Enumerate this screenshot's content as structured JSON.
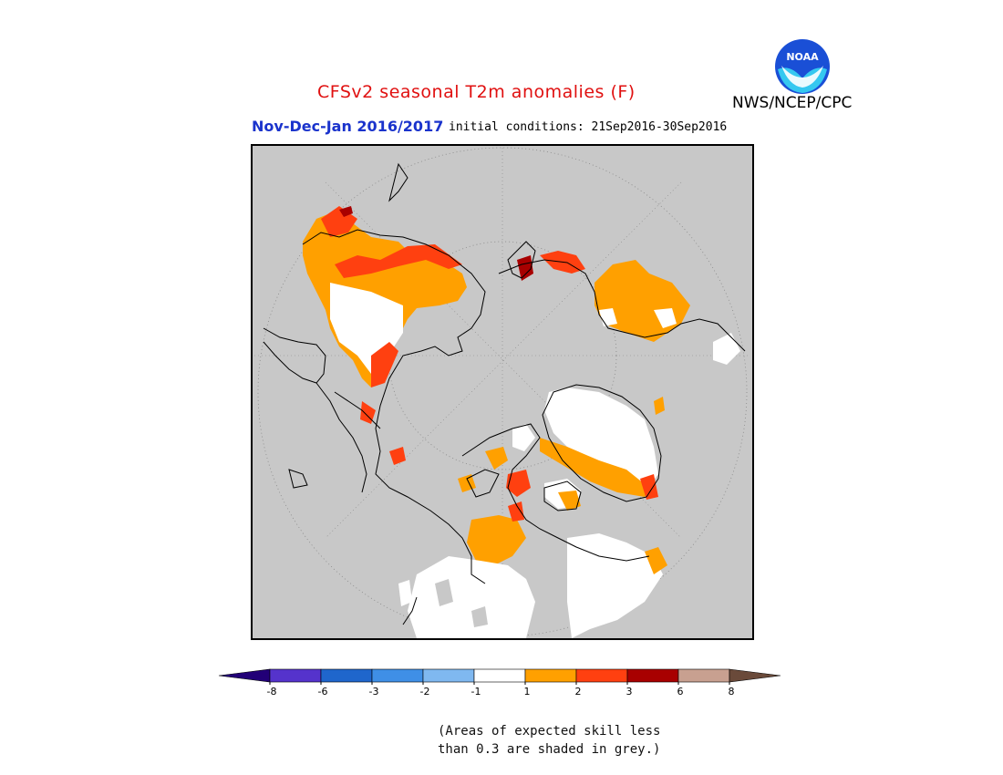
{
  "title": "CFSv2 seasonal T2m anomalies (F)",
  "season": "Nov-Dec-Jan 2016/2017",
  "initial_conditions": "initial conditions: 21Sep2016-30Sep2016",
  "agency": "NWS/NCEP/CPC",
  "logo_text": "NOAA",
  "legend": {
    "ticks": [
      "-8",
      "-6",
      "-3",
      "-2",
      "-1",
      "1",
      "2",
      "3",
      "6",
      "8"
    ],
    "colors": [
      "#220077",
      "#5533cc",
      "#1f66cc",
      "#3f8fe6",
      "#7fb8f0",
      "#ffffff",
      "#ffa000",
      "#ff4010",
      "#a80000",
      "#c8a090",
      "#6a4a3a"
    ]
  },
  "note": {
    "line1": "(Areas of expected skill less",
    "line2": "than 0.3 are shaded in grey.)"
  },
  "colors": {
    "background_grey": "#c8c8c8",
    "anomaly_1_2": "#ffa000",
    "anomaly_2_3": "#ff4010",
    "anomaly_3_6": "#a80000",
    "near_normal": "#ffffff",
    "title_red": "#e01010",
    "season_blue": "#1a33cc"
  }
}
